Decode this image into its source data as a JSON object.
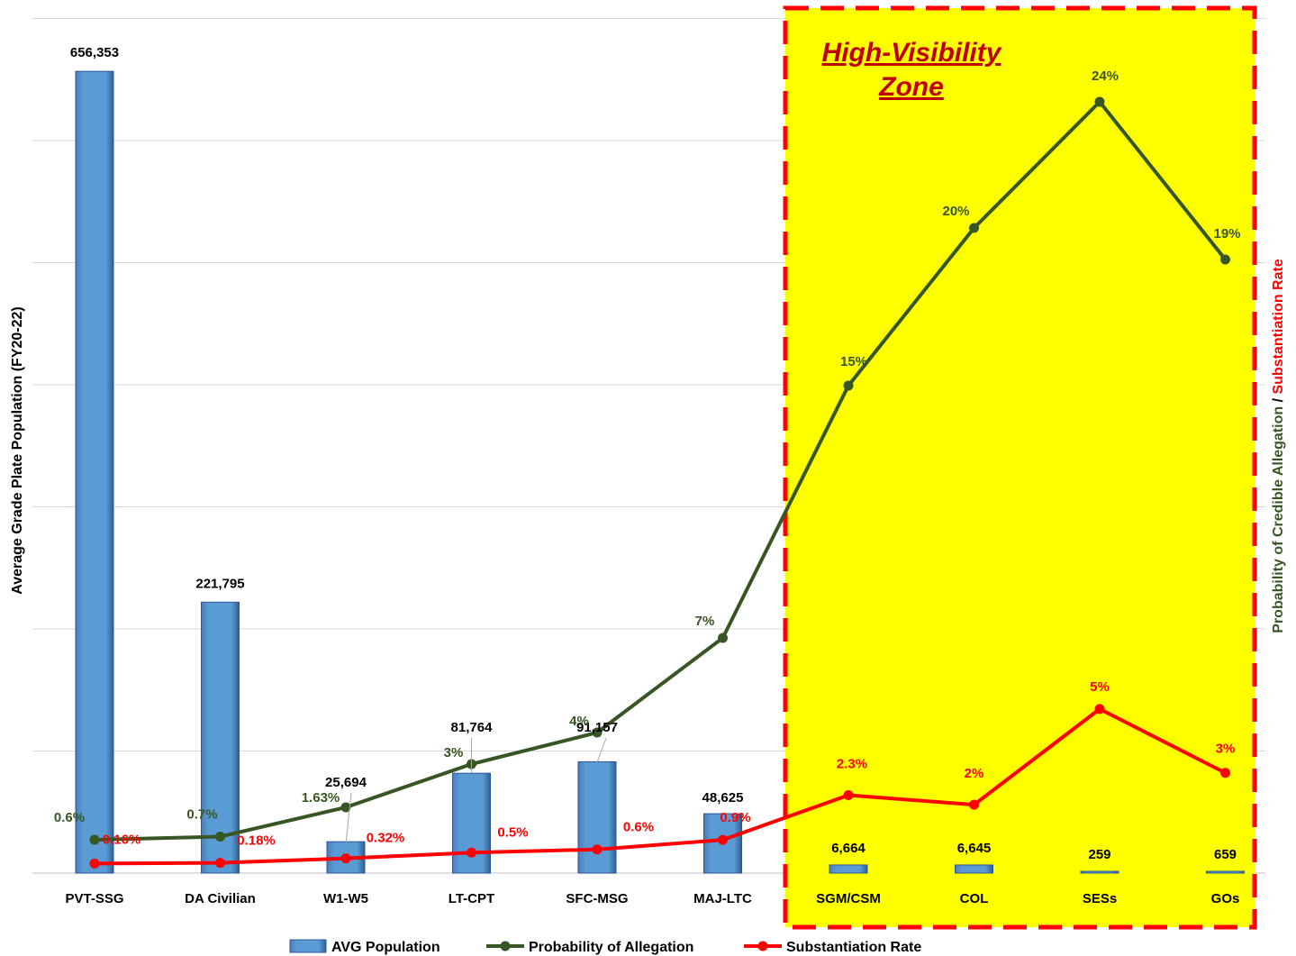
{
  "chart_data": {
    "type": "bar",
    "categories": [
      "PVT-SSG",
      "DA Civilian",
      "W1-W5",
      "LT-CPT",
      "SFC-MSG",
      "MAJ-LTC",
      "SGM/CSM",
      "COL",
      "SESs",
      "GOs"
    ],
    "series": [
      {
        "name": "AVG Population",
        "type": "bar",
        "axis": "left",
        "color": "#5b9bd5",
        "values": [
          656353,
          221795,
          25694,
          81764,
          91157,
          48625,
          6664,
          6645,
          259,
          659
        ],
        "labels": [
          "656,353",
          "221,795",
          "25,694",
          "81,764",
          "91,157",
          "48,625",
          "6,664",
          "6,645",
          "259",
          "659"
        ]
      },
      {
        "name": "Probability of Allegation",
        "type": "line",
        "axis": "right",
        "color": "#375623",
        "values": [
          0.6,
          0.7,
          1.63,
          3,
          4,
          7,
          15,
          20,
          24,
          19
        ],
        "labels": [
          "0.6%",
          "0.7%",
          "1.63%",
          "3%",
          "4%",
          "7%",
          "15%",
          "20%",
          "24%",
          "19%"
        ]
      },
      {
        "name": "Substantiation Rate",
        "type": "line",
        "axis": "right",
        "color": "#ff0000",
        "values": [
          0.16,
          0.18,
          0.32,
          0.5,
          0.6,
          0.9,
          2.3,
          2,
          5,
          3
        ],
        "labels": [
          "0.16%",
          "0.18%",
          "0.32%",
          "0.5%",
          "0.6%",
          "0.9%",
          "2.3%",
          "2%",
          "5%",
          "3%"
        ]
      }
    ],
    "ylabel": "Average Grade Plate Population (FY20-22)",
    "y2label_parts": [
      {
        "text": "Probability of Credible Allegation",
        "color": "#375623"
      },
      {
        "text": " / ",
        "color": "#000000"
      },
      {
        "text": "Substantiation Rate",
        "color": "#ff0000"
      }
    ],
    "annotation": {
      "text_lines": [
        "High-Visibility",
        "Zone"
      ],
      "color": "#c00000",
      "fill": "#ffff00",
      "border": "#ff0000",
      "spans_categories": [
        "SGM/CSM",
        "COL",
        "SESs",
        "GOs"
      ]
    },
    "legend_position": "bottom",
    "grid": true
  }
}
